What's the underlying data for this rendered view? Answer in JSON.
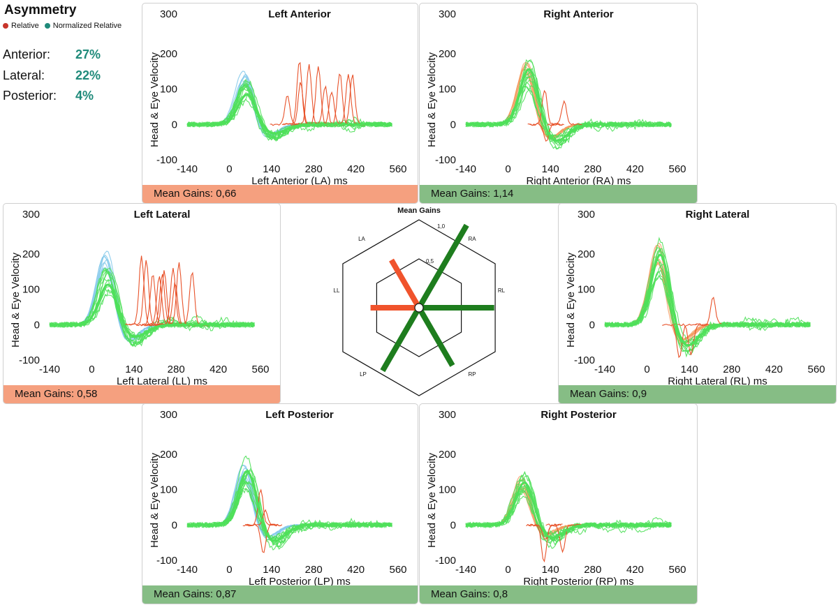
{
  "symmetry": {
    "title": "Asymmetry",
    "legend": [
      {
        "label": "Relative",
        "color": "#c8352b"
      },
      {
        "label": "Normalized Relative",
        "color": "#1f8a7a"
      }
    ],
    "rows": [
      {
        "label": "Anterior:",
        "value": "27%"
      },
      {
        "label": "Lateral:",
        "value": "22%"
      },
      {
        "label": "Posterior:",
        "value": "4%"
      }
    ]
  },
  "colors": {
    "head": "#7fc7ea",
    "eye_good": "#4fe05a",
    "eye_bad_low": "#e8522a",
    "eye_bad_high": "#f29a5c",
    "bar_low": "#f5a07f",
    "bar_ok": "#86bd85"
  },
  "panels": [
    {
      "key": "la",
      "title": "Left Anterior",
      "xlabel": "Left Anterior (LA) ms",
      "ylabel": "Head & Eye Velocity",
      "gain_text": "Mean Gains: 0,66",
      "status": "low",
      "covert": true,
      "peak": 145,
      "peak_time": 50,
      "head_color": "head"
    },
    {
      "key": "ra",
      "title": "Right Anterior",
      "xlabel": "Right Anterior (RA) ms",
      "ylabel": "Head & Eye Velocity",
      "gain_text": "Mean Gains: 1,14",
      "status": "ok",
      "covert": false,
      "peak": 170,
      "peak_time": 60,
      "head_color": "eye_bad_high"
    },
    {
      "key": "ll",
      "title": "Left Lateral",
      "xlabel": "Left Lateral (LL) ms",
      "ylabel": "Head & Eye Velocity",
      "gain_text": "Mean Gains: 0,58",
      "status": "low",
      "covert": true,
      "peak": 195,
      "peak_time": 45,
      "head_color": "head"
    },
    {
      "key": "rl",
      "title": "Right Lateral",
      "xlabel": "Right Lateral (RL) ms",
      "ylabel": "Head & Eye Velocity",
      "gain_text": "Mean Gains: 0,9",
      "status": "ok",
      "covert": false,
      "peak": 215,
      "peak_time": 35,
      "head_color": "eye_bad_high"
    },
    {
      "key": "lp",
      "title": "Left Posterior",
      "xlabel": "Left Posterior (LP) ms",
      "ylabel": "Head & Eye Velocity",
      "gain_text": "Mean Gains: 0,87",
      "status": "ok",
      "covert": false,
      "peak": 165,
      "peak_time": 50,
      "head_color": "head"
    },
    {
      "key": "rp",
      "title": "Right Posterior",
      "xlabel": "Right Posterior (RP) ms",
      "ylabel": "Head & Eye Velocity",
      "gain_text": "Mean Gains: 0,8",
      "status": "ok",
      "covert": false,
      "peak": 130,
      "peak_time": 45,
      "head_color": "eye_bad_high"
    }
  ],
  "radar": {
    "title": "Mean Gains",
    "labels": {
      "ra": "RA",
      "rl": "RL",
      "rp": "RP",
      "lp": "LP",
      "ll": "LL",
      "la": "LA"
    },
    "ring_labels": [
      "0,5",
      "1,0"
    ]
  },
  "chart_data": {
    "type": "line",
    "x_ticks": [
      -140,
      0,
      140,
      280,
      420,
      560
    ],
    "y_ticks": [
      -100,
      0,
      100,
      200,
      300
    ],
    "xlim": [
      -140,
      560
    ],
    "ylim": [
      -100,
      300
    ],
    "series": [
      {
        "name": "Left Anterior",
        "mean_gain": 0.66
      },
      {
        "name": "Right Anterior",
        "mean_gain": 1.14
      },
      {
        "name": "Left Lateral",
        "mean_gain": 0.58
      },
      {
        "name": "Right Lateral",
        "mean_gain": 0.9
      },
      {
        "name": "Left Posterior",
        "mean_gain": 0.87
      },
      {
        "name": "Right Posterior",
        "mean_gain": 0.8
      }
    ]
  }
}
